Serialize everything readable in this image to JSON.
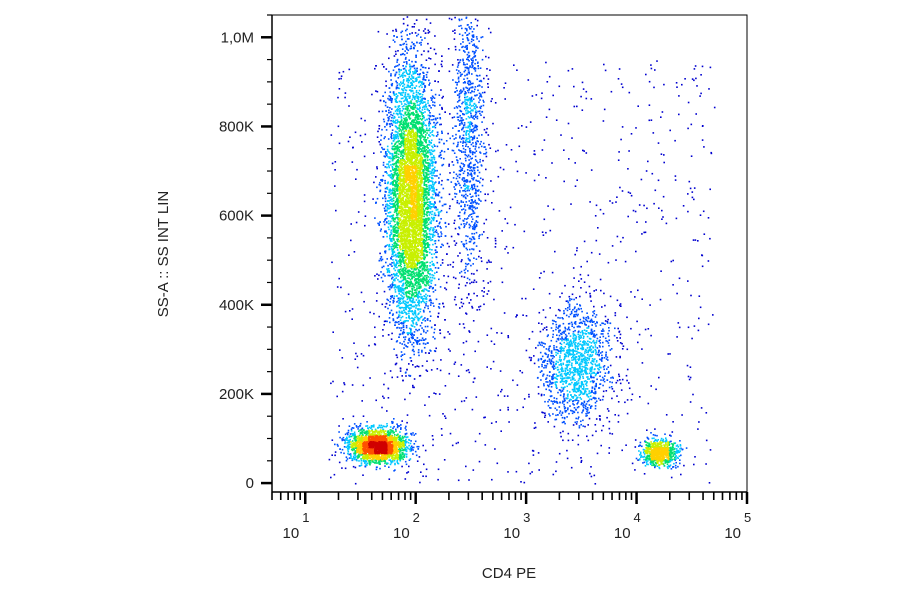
{
  "chart_data": {
    "type": "scatter",
    "subtype": "flow-cytometry-density-dot-plot",
    "xlabel": "CD4 PE",
    "ylabel": "SS-A :: SS INT LIN",
    "x_scale": "log",
    "xlim": [
      5,
      100000
    ],
    "ylim": [
      -20000,
      1050000
    ],
    "x_ticks": [
      {
        "base": "10",
        "exp": "1",
        "value": 10
      },
      {
        "base": "10",
        "exp": "2",
        "value": 100
      },
      {
        "base": "10",
        "exp": "3",
        "value": 1000
      },
      {
        "base": "10",
        "exp": "4",
        "value": 10000
      },
      {
        "base": "10",
        "exp": "5",
        "value": 100000
      }
    ],
    "y_ticks": [
      {
        "label": "0",
        "value": 0
      },
      {
        "label": "200K",
        "value": 200000
      },
      {
        "label": "400K",
        "value": 400000
      },
      {
        "label": "600K",
        "value": 600000
      },
      {
        "label": "800K",
        "value": 800000
      },
      {
        "label": "1,0M",
        "value": 1000000
      }
    ],
    "colormap": [
      "#0000d0",
      "#0050ff",
      "#00c8ff",
      "#00e070",
      "#c8f000",
      "#ffd000",
      "#ff5000",
      "#d00000"
    ],
    "populations": [
      {
        "x_center": 90,
        "x_spread_decades": 0.11,
        "y_center": 640000,
        "y_spread": 150000,
        "n": 6500
      },
      {
        "x_center": 45,
        "x_spread_decades": 0.13,
        "y_center": 85000,
        "y_spread": 18000,
        "n": 2200
      },
      {
        "x_center": 2800,
        "x_spread_decades": 0.16,
        "y_center": 270000,
        "y_spread": 65000,
        "n": 1300
      },
      {
        "x_center": 16000,
        "x_spread_decades": 0.08,
        "y_center": 70000,
        "y_spread": 14000,
        "n": 750
      },
      {
        "x_center": 300,
        "x_spread_decades": 0.07,
        "y_center": 780000,
        "y_spread": 180000,
        "n": 1000
      }
    ]
  }
}
